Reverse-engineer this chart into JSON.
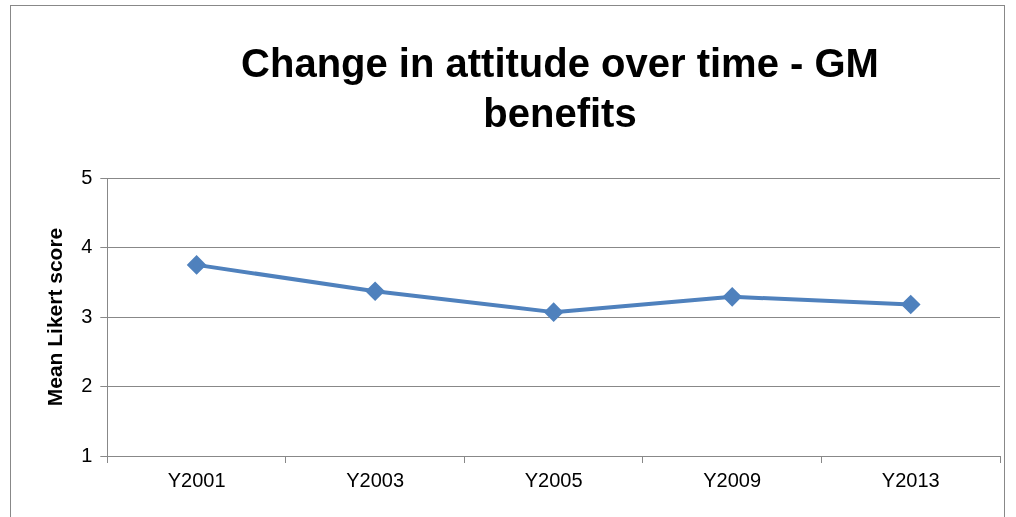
{
  "chart_data": {
    "type": "line",
    "title": "Change in attitude over time - GM benefits",
    "ylabel": "Mean Likert score",
    "categories": [
      "Y2001",
      "Y2003",
      "Y2005",
      "Y2009",
      "Y2013"
    ],
    "series": [
      {
        "color": "#4f81bd",
        "values": [
          3.75,
          3.37,
          3.07,
          3.29,
          3.18
        ]
      }
    ],
    "ylim": [
      1,
      5
    ],
    "yticks": [
      1,
      2,
      3,
      4,
      5
    ],
    "grid": "y",
    "marker": "diamond",
    "line_style": "solid",
    "legend": false
  }
}
